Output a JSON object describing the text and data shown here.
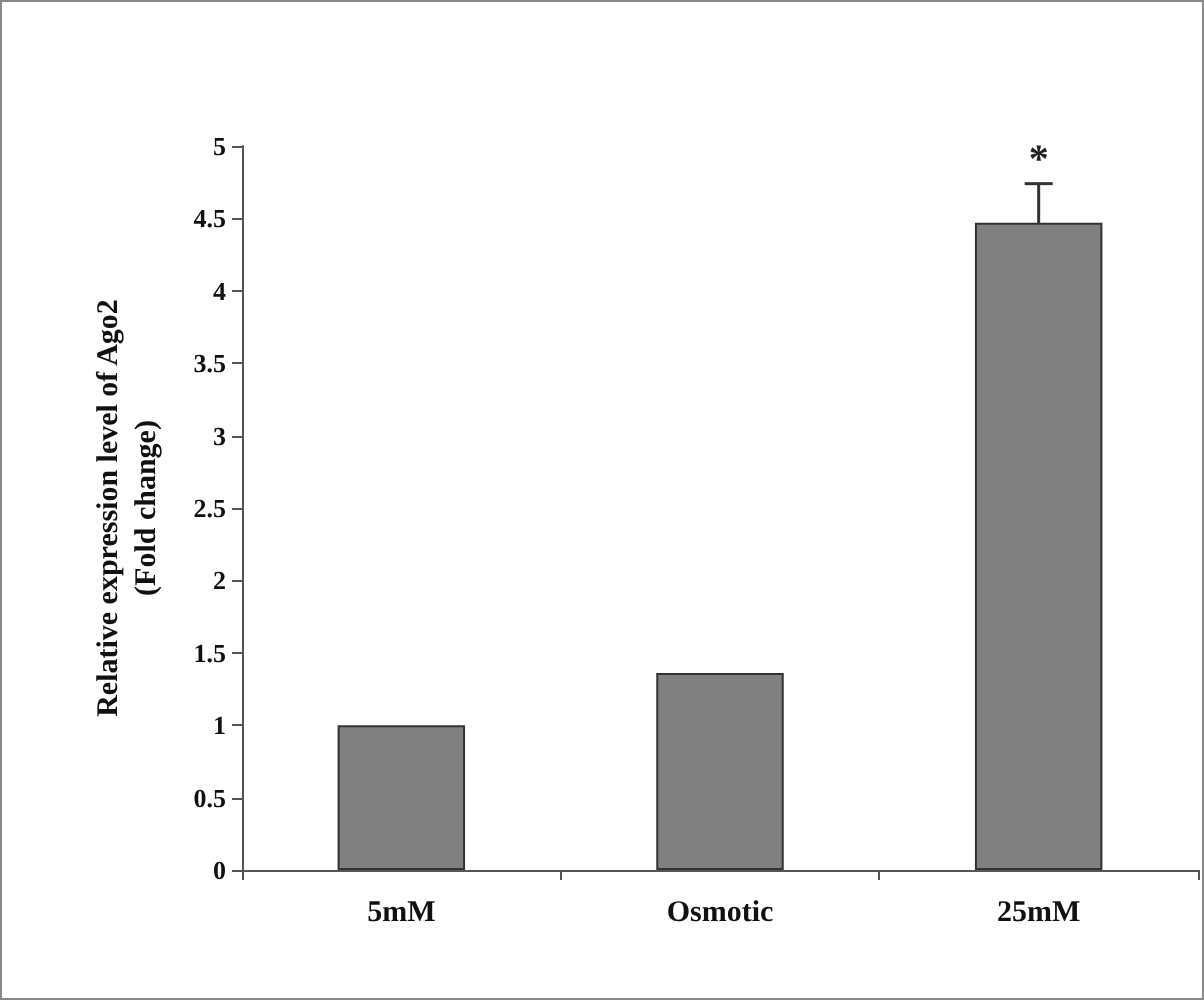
{
  "chart_data": {
    "type": "bar",
    "ylabel": "Relative expression level of Ago2\n(Fold change)",
    "categories": [
      "5mM",
      "Osmotic",
      "25mM"
    ],
    "values": [
      1.0,
      1.36,
      4.47
    ],
    "errors": [
      null,
      null,
      0.27
    ],
    "color": "#808080",
    "ylim": [
      0,
      5
    ],
    "yticks": [
      0,
      0.5,
      1,
      1.5,
      2,
      2.5,
      3,
      3.5,
      4,
      4.5,
      5
    ],
    "grid": false,
    "annotations": [
      "*"
    ]
  }
}
